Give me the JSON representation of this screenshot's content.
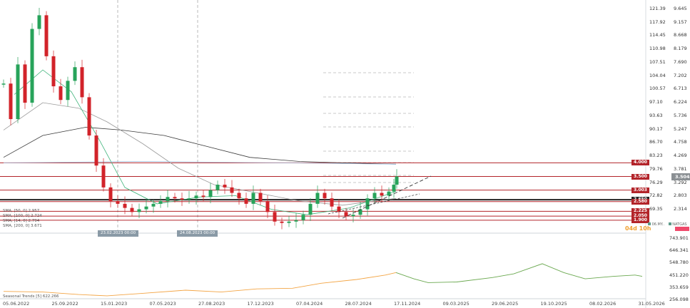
{
  "chart_data": [
    {
      "type": "line",
      "title": "",
      "instrument": "NATGAS",
      "left_axis_ticks": [
        "121.39",
        "117.92",
        "114.45",
        "110.98",
        "107.51",
        "104.04",
        "100.57",
        "97.10",
        "93.63",
        "90.17",
        "86.70",
        "83.23",
        "79.76",
        "76.29",
        "72.82",
        "69.35"
      ],
      "right_axis_ticks": [
        "9.645",
        "9.157",
        "8.668",
        "8.179",
        "7.690",
        "7.202",
        "6.713",
        "6.224",
        "5.736",
        "5.247",
        "4.758",
        "4.269",
        "3.781",
        "3.292",
        "2.803",
        "2.314"
      ],
      "level_labels": [
        {
          "value": "4.000",
          "color": "#b3242a"
        },
        {
          "value": "3.500",
          "color": "#b3242a"
        },
        {
          "value": "3.003",
          "color": "#b3242a"
        },
        {
          "value": "2.650",
          "color": "#222222"
        },
        {
          "value": "2.580",
          "color": "#b3242a"
        },
        {
          "value": "2.225",
          "color": "#b3242a"
        },
        {
          "value": "2.050",
          "color": "#b3242a"
        },
        {
          "value": "1.900",
          "color": "#b3242a"
        }
      ],
      "current_price": "3.504",
      "countdown": "04d 10h",
      "legend": [
        "SMA, [50, 0] 2.957",
        "SMA, [100, 0] 2.724",
        "SMA, [14, 0] 2.794",
        "SMA, [200, 0] 3.671"
      ],
      "vertical_line_labels": [
        "23.02.2023 00:00",
        "24.08.2023 00:00"
      ],
      "series": [
        {
          "name": "NATGAS",
          "color": "#ef4a6b"
        },
        {
          "name": "06.MY..",
          "color": "#5e9b8a"
        }
      ]
    },
    {
      "type": "line",
      "title": "",
      "series_label": "Seasonal  Trends [5] 622.266",
      "right_axis_ticks": [
        "743.901",
        "646.341",
        "548.780",
        "451.220",
        "353.659",
        "256.098"
      ],
      "x_tick_labels": [
        "05.06.2022",
        "25.09.2022",
        "15.01.2023",
        "07.05.2023",
        "27.08.2023",
        "17.12.2023",
        "07.04.2024",
        "28.07.2024",
        "17.11.2024",
        "09.03.2025",
        "29.06.2025",
        "19.10.2025",
        "08.02.2026",
        "31.05.2026"
      ]
    }
  ],
  "colors": {
    "up": "#27a35a",
    "down": "#d2232a",
    "sma50": "#3fb37a",
    "sma100": "#9a9a9a",
    "sma200": "#3a3a3a",
    "sma14": "#a0c0e0",
    "seasonal_past": "#f3a545",
    "seasonal_future": "#6aa84f",
    "level": "#b3242a"
  }
}
